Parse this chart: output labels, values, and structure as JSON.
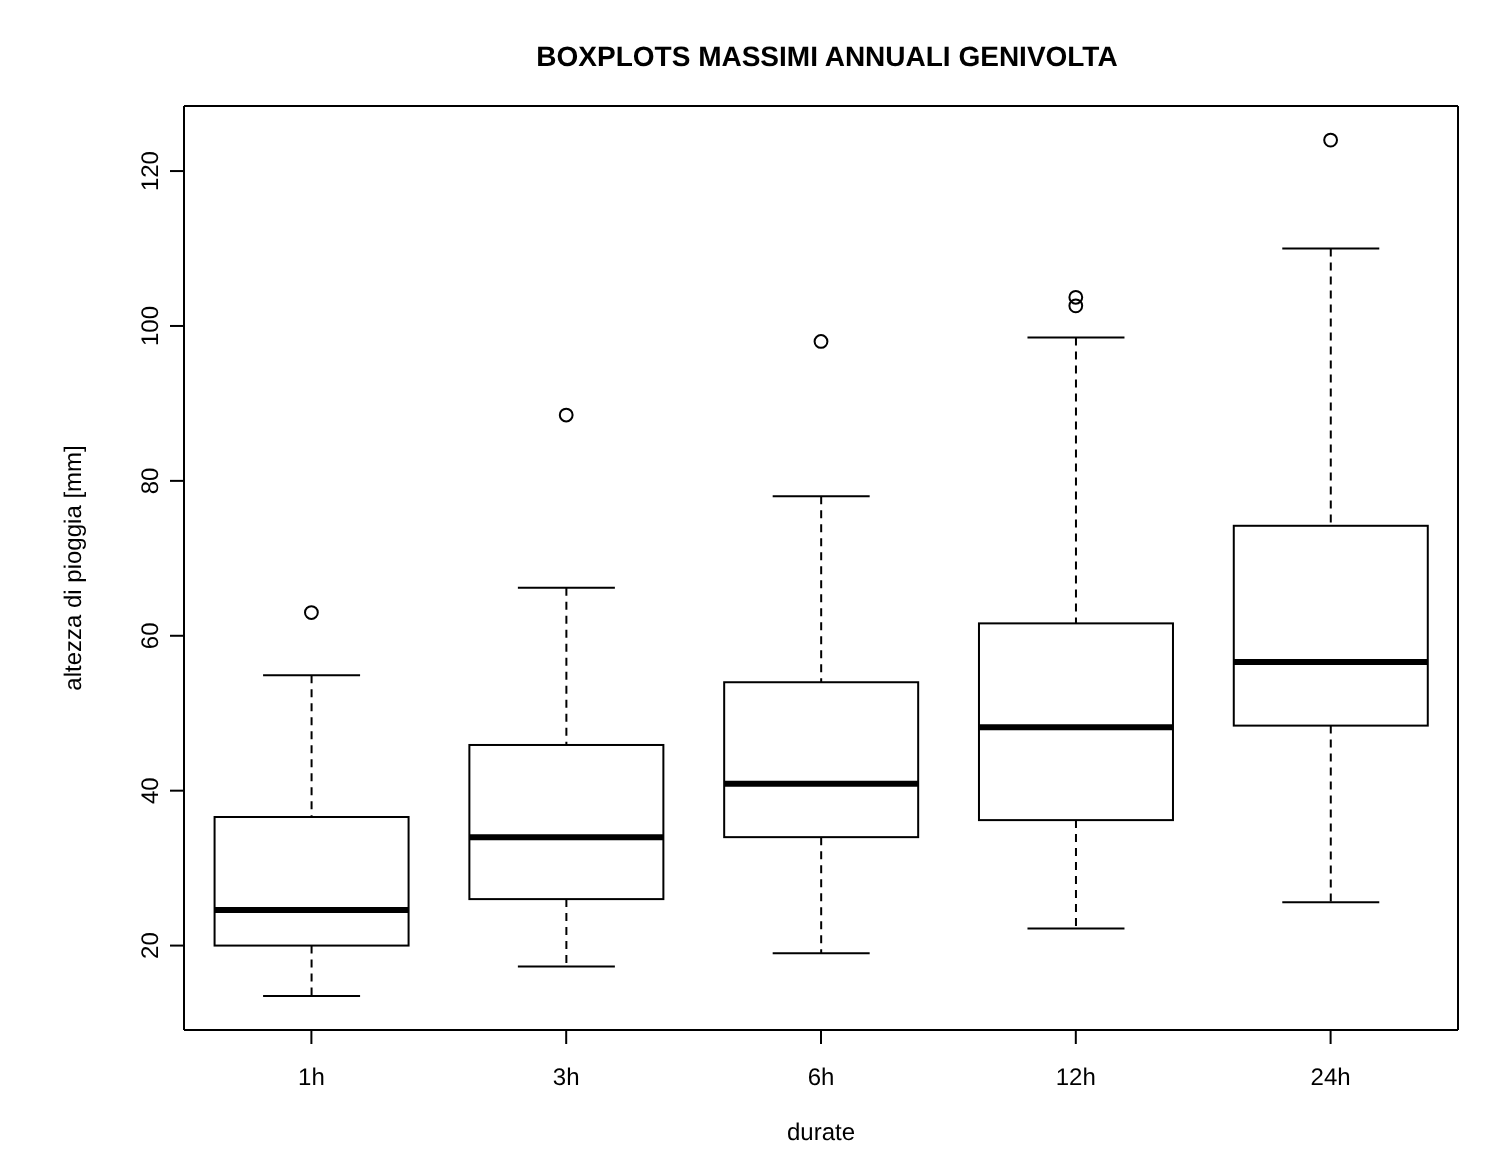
{
  "chart_data": {
    "type": "box",
    "title": "BOXPLOTS MASSIMI ANNUALI GENIVOLTA",
    "xlabel": "durate",
    "ylabel": "altezza di pioggia [mm]",
    "categories": [
      "1h",
      "3h",
      "6h",
      "12h",
      "24h"
    ],
    "boxes": [
      {
        "low": 13.5,
        "q1": 20,
        "median": 24.6,
        "q3": 36.6,
        "high": 54.9,
        "outliers": [
          63
        ]
      },
      {
        "low": 17.3,
        "q1": 26,
        "median": 34,
        "q3": 45.9,
        "high": 66.2,
        "outliers": [
          88.5
        ]
      },
      {
        "low": 19,
        "q1": 34,
        "median": 40.9,
        "q3": 54,
        "high": 78,
        "outliers": [
          98
        ]
      },
      {
        "low": 22.2,
        "q1": 36.2,
        "median": 48.2,
        "q3": 61.6,
        "high": 98.5,
        "outliers": [
          102.6,
          103.7
        ]
      },
      {
        "low": 25.6,
        "q1": 48.4,
        "median": 56.6,
        "q3": 74.2,
        "high": 110,
        "outliers": [
          124
        ]
      }
    ],
    "color": "#000000",
    "ylim": [
      9.1,
      128.4
    ],
    "yticks": [
      20,
      40,
      60,
      80,
      100,
      120
    ]
  }
}
